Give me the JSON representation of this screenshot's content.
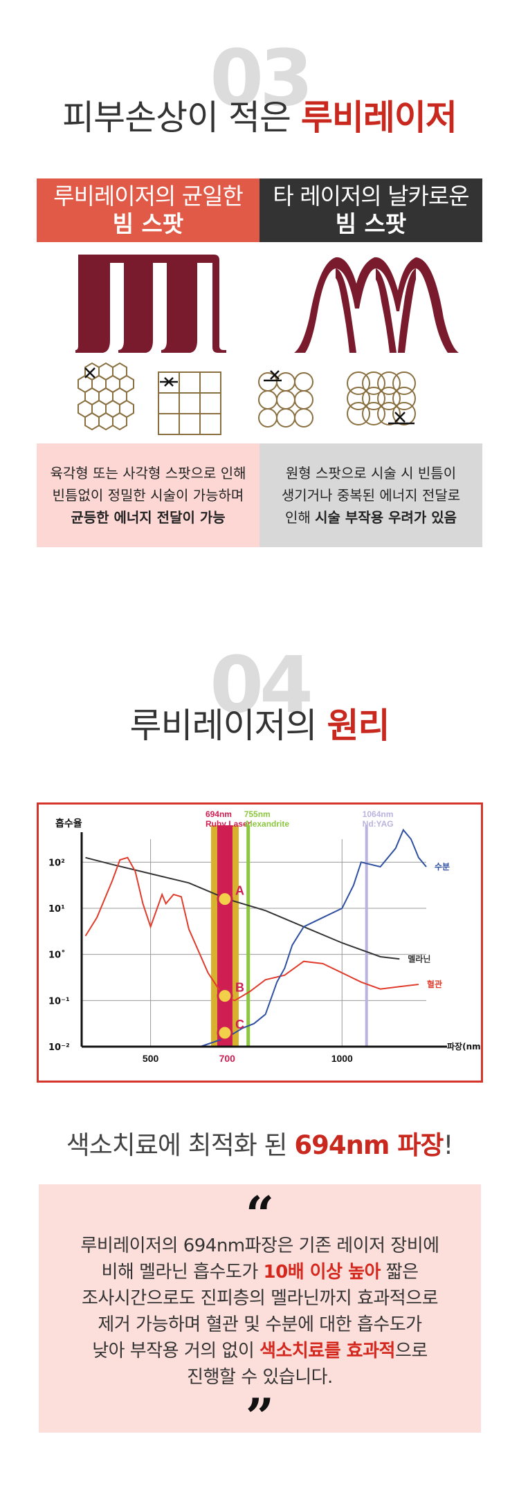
{
  "section3": {
    "number": "03",
    "heading_plain": "피부손상이 적은 ",
    "heading_accent": "루비레이저",
    "left_header_line1": "루비레이저의 균일한",
    "left_header_line2": "빔 스팟",
    "right_header_line1": "타 레이저의 날카로운",
    "right_header_line2": "빔 스팟",
    "left_desc_line1": "육각형 또는 사각형 스팟으로 인해",
    "left_desc_line2": "빈틈없이 정밀한 시술이 가능하며",
    "left_desc_line3": "균등한 에너지 전달이 가능",
    "right_desc_line1": "원형 스팟으로 시술 시 빈틈이",
    "right_desc_line2": "생기거나 중복된 에너지 전달로",
    "right_desc_line3_plain": "인해 ",
    "right_desc_line3_strong": "시술 부작용 우려가 있음"
  },
  "section4": {
    "number": "04",
    "heading_plain": "루비레이저의 ",
    "heading_accent": "원리",
    "caption_plain": "색소치료에 최적화 된 ",
    "caption_accent": "694nm 파장",
    "caption_end": "!",
    "quote_open": "“",
    "quote_close": "”",
    "quote_l1": "루비레이저의 694nm파장은 기존 레이저 장비에",
    "quote_l2_a": "비해 멜라닌 흡수도가 ",
    "quote_l2_b": "10배 이상 높아",
    "quote_l2_c": " 짧은",
    "quote_l3": "조사시간으로도 진피층의 멜라닌까지 효과적으로",
    "quote_l4": "제거 가능하며 혈관 및 수분에 대한 흡수도가",
    "quote_l5_a": "낮아 부작용 거의 없이 ",
    "quote_l5_b": "색소치료를 효과적",
    "quote_l5_c": "으로",
    "quote_l6": "진행할 수 있습니다."
  },
  "chart_data": {
    "type": "line",
    "ylabel": "흡수율",
    "xlabel": "파장(nm)",
    "x_ticks": [
      "500",
      "700",
      "1000"
    ],
    "y_ticks": [
      "10²",
      "10¹",
      "10˚",
      "10⁻¹",
      "10⁻²"
    ],
    "ylim": [
      -2,
      2.5
    ],
    "xlim": [
      320,
      1220
    ],
    "series": [
      {
        "name": "멜라닌",
        "color": "#333333",
        "x": [
          330,
          400,
          500,
          600,
          700,
          800,
          900,
          1000,
          1100,
          1150
        ],
        "y": [
          2.1,
          1.95,
          1.75,
          1.55,
          1.2,
          0.95,
          0.6,
          0.25,
          -0.05,
          -0.1
        ]
      },
      {
        "name": "혈관",
        "color": "#e03b2b",
        "x": [
          330,
          360,
          400,
          420,
          440,
          460,
          480,
          500,
          530,
          540,
          560,
          580,
          600,
          650,
          690,
          700,
          720,
          760,
          800,
          850,
          900,
          950,
          1000,
          1050,
          1100,
          1150,
          1200
        ],
        "y": [
          0.4,
          0.8,
          1.6,
          2.05,
          2.1,
          1.8,
          1.1,
          0.6,
          1.3,
          1.1,
          1.3,
          1.25,
          0.55,
          -0.4,
          -0.9,
          -0.95,
          -1.0,
          -0.8,
          -0.55,
          -0.45,
          -0.15,
          -0.2,
          -0.4,
          -0.6,
          -0.75,
          -0.7,
          -0.65
        ]
      },
      {
        "name": "수분",
        "color": "#2f4fa0",
        "x": [
          630,
          700,
          740,
          770,
          800,
          830,
          850,
          870,
          900,
          950,
          1000,
          1030,
          1050,
          1100,
          1140,
          1160,
          1180,
          1190,
          1200,
          1220
        ],
        "y": [
          -2.0,
          -1.8,
          -1.6,
          -1.5,
          -1.3,
          -0.6,
          -0.3,
          0.2,
          0.6,
          0.8,
          1.0,
          1.5,
          2.0,
          1.9,
          2.3,
          2.7,
          2.5,
          2.3,
          2.1,
          1.9
        ]
      }
    ],
    "bands": [
      {
        "label_line1": "694nm",
        "label_line2": "Ruby Laser",
        "x": 694,
        "color": "#cf1f52"
      },
      {
        "label_line1": "755nm",
        "label_line2": "Alexandrite",
        "x": 755,
        "color": "#8cc63f"
      },
      {
        "label_line1": "1064nm",
        "label_line2": "Nd:YAG",
        "x": 1064,
        "color": "#b9b3df"
      }
    ],
    "points": [
      {
        "label": "A",
        "x": 694,
        "y": 1.2
      },
      {
        "label": "B",
        "x": 694,
        "y": -0.9
      },
      {
        "label": "C",
        "x": 694,
        "y": -1.7
      }
    ]
  }
}
